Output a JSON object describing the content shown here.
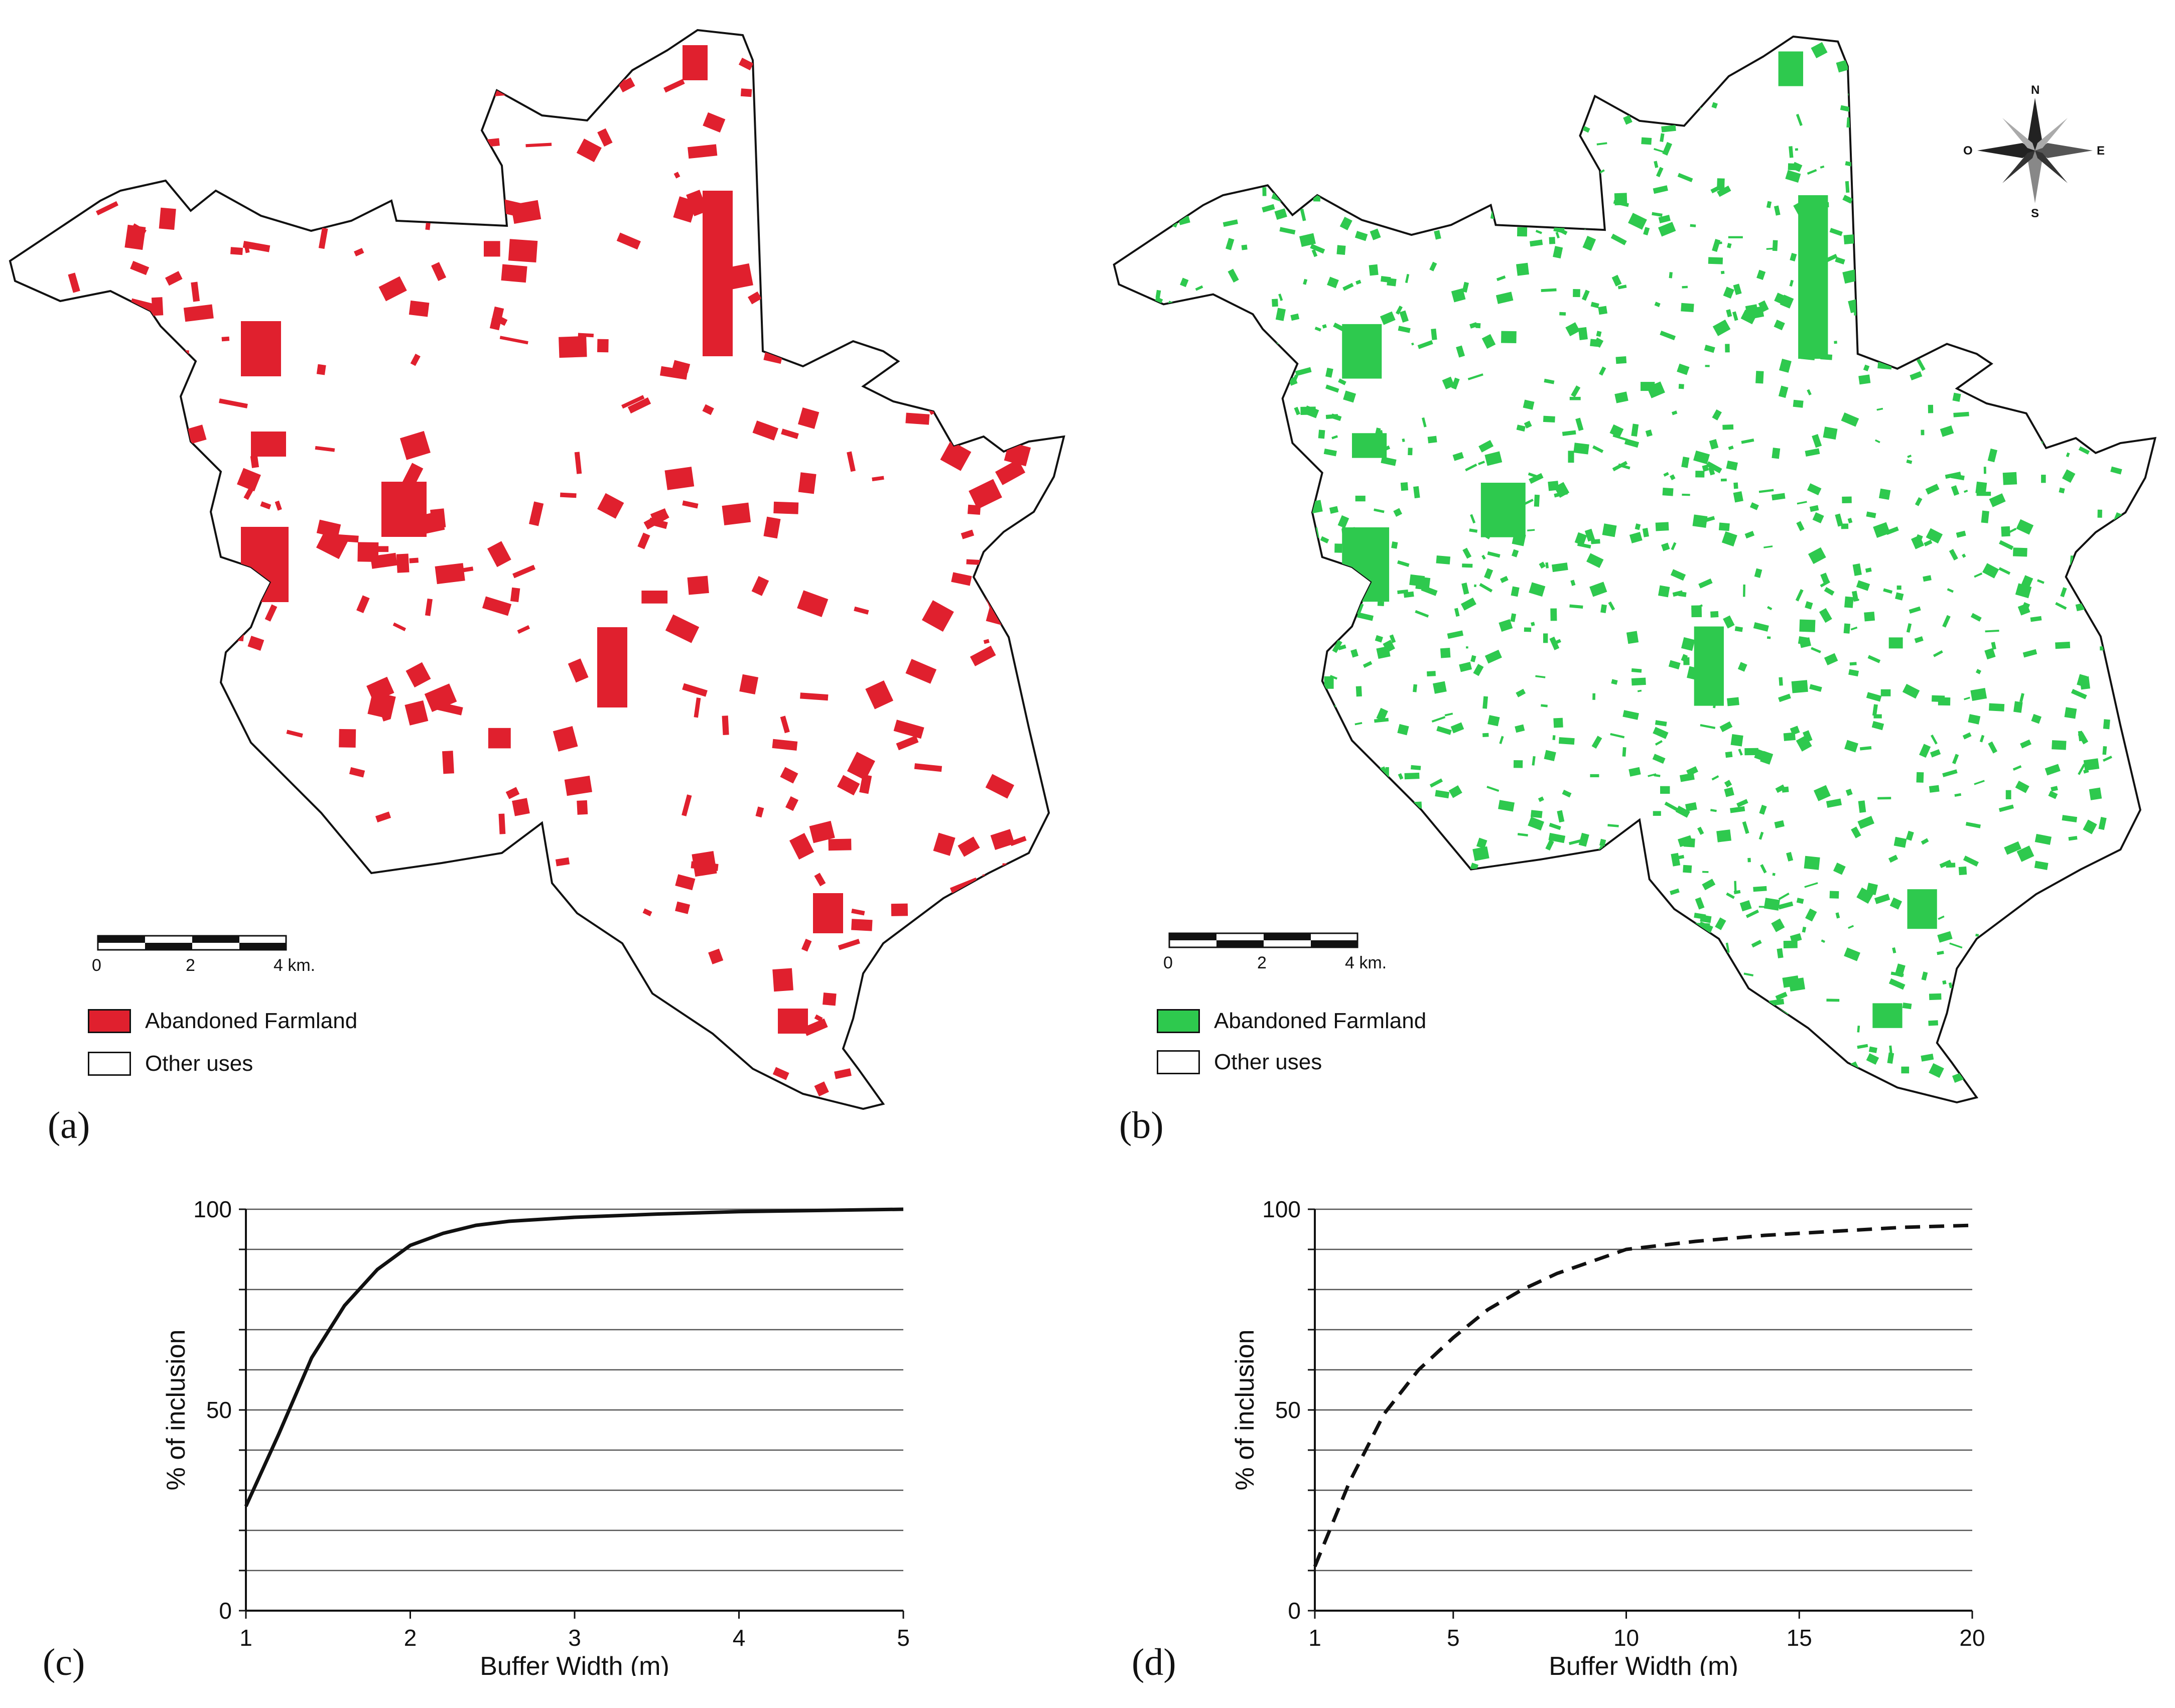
{
  "panels": {
    "a": "(a)",
    "b": "(b)",
    "c": "(c)",
    "d": "(d)"
  },
  "map_a": {
    "legend": [
      {
        "label": "Abandoned Farmland",
        "color": "#e0202e"
      },
      {
        "label": "Other uses",
        "color": "#ffffff"
      }
    ],
    "scale": {
      "ticks": [
        "0",
        "2",
        "4 km."
      ]
    }
  },
  "map_b": {
    "legend": [
      {
        "label": "Abandoned Farmland",
        "color": "#2ec94e"
      },
      {
        "label": "Other uses",
        "color": "#ffffff"
      }
    ],
    "scale": {
      "ticks": [
        "0",
        "2",
        "4 km."
      ]
    },
    "compass": {
      "n": "N",
      "s": "S",
      "e": "E",
      "w": "O"
    }
  },
  "chart_data": [
    {
      "type": "line",
      "panel": "(c)",
      "xlabel": "Buffer Width (m)",
      "ylabel": "% of inclusion",
      "xlim": [
        1,
        5
      ],
      "ylim": [
        0,
        100
      ],
      "xticks": [
        1,
        2,
        3,
        4,
        5
      ],
      "yticks": [
        0,
        50,
        100
      ],
      "grid": true,
      "line_style": "solid",
      "x": [
        1,
        1.2,
        1.4,
        1.6,
        1.8,
        2.0,
        2.2,
        2.4,
        2.6,
        2.8,
        3.0,
        3.5,
        4.0,
        4.5,
        5.0
      ],
      "y": [
        26,
        44,
        63,
        76,
        85,
        91,
        94,
        96,
        97,
        97.5,
        98,
        98.8,
        99.4,
        99.7,
        100
      ]
    },
    {
      "type": "line",
      "panel": "(d)",
      "xlabel": "Buffer Width (m)",
      "ylabel": "% of inclusion",
      "xlim": [
        1,
        20
      ],
      "ylim": [
        0,
        100
      ],
      "xticks": [
        1,
        5,
        10,
        15,
        20
      ],
      "yticks": [
        0,
        50,
        100
      ],
      "grid": true,
      "line_style": "dashed",
      "x": [
        1,
        2,
        3,
        4,
        5,
        6,
        7,
        8,
        9,
        10,
        12,
        14,
        16,
        18,
        20
      ],
      "y": [
        11,
        32,
        49,
        60,
        68,
        75,
        80,
        84,
        87,
        90,
        92,
        93.5,
        94.5,
        95.5,
        96
      ]
    }
  ]
}
